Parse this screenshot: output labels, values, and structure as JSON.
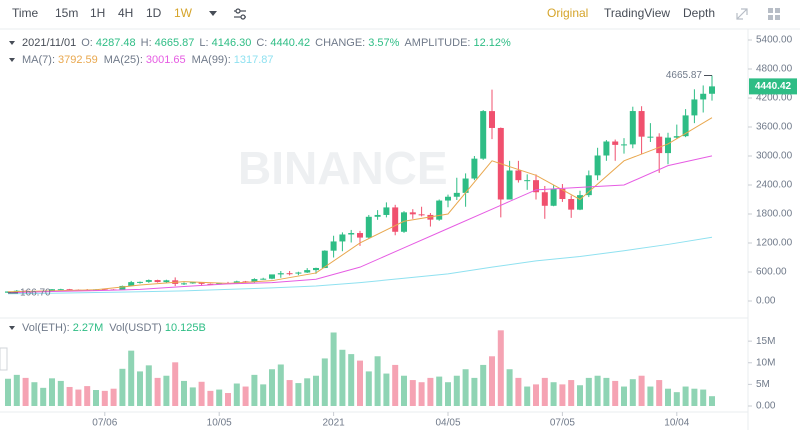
{
  "toolbar": {
    "intervals": [
      "Time",
      "15m",
      "1H",
      "4H",
      "1D",
      "1W"
    ],
    "views": [
      "Original",
      "TradingView",
      "Depth"
    ]
  },
  "chart_data": {
    "type": "candlestick",
    "watermark": "BINANCE",
    "legend": {
      "date": "2021/11/01",
      "items": [
        {
          "label": "O:",
          "value": "4287.48"
        },
        {
          "label": "H:",
          "value": "4665.87"
        },
        {
          "label": "L:",
          "value": "4146.30"
        },
        {
          "label": "C:",
          "value": "4440.42"
        },
        {
          "label": "CHANGE:",
          "value": "3.57%"
        },
        {
          "label": "AMPLITUDE:",
          "value": "12.12%"
        }
      ]
    },
    "high_label": "4665.87",
    "low_label": "166.70",
    "up_color": "#2ebd85",
    "down_color": "#f0506e",
    "volume_up_color": "#8fd4b4",
    "volume_down_color": "#f5a3b3",
    "categories": [
      null,
      null,
      null,
      null,
      null,
      null,
      null,
      null,
      null,
      null,
      null,
      "07/06",
      null,
      null,
      null,
      null,
      null,
      null,
      null,
      null,
      null,
      null,
      null,
      null,
      "10/05",
      null,
      null,
      null,
      null,
      null,
      null,
      null,
      null,
      null,
      null,
      null,
      null,
      "2021",
      null,
      null,
      null,
      null,
      null,
      null,
      null,
      null,
      null,
      null,
      null,
      null,
      "04/05",
      null,
      null,
      null,
      null,
      null,
      null,
      null,
      null,
      null,
      null,
      null,
      null,
      "07/05",
      null,
      null,
      null,
      null,
      null,
      null,
      null,
      null,
      null,
      null,
      null,
      null,
      "10/04",
      null,
      null,
      null,
      null
    ],
    "open": [
      171,
      197,
      212,
      188,
      200,
      206,
      243,
      244,
      232,
      229,
      225,
      241,
      239,
      232,
      311,
      390,
      395,
      433,
      391,
      428,
      353,
      365,
      385,
      355,
      353,
      370,
      368,
      406,
      396,
      454,
      461,
      550,
      575,
      567,
      589,
      639,
      683,
      1041,
      1232,
      1376,
      1406,
      1312,
      1742,
      1780,
      1936,
      1432,
      1834,
      1793,
      1781,
      1683,
      2078,
      2157,
      2237,
      2534,
      2945,
      3929,
      3580,
      2100,
      2700,
      2500,
      2500,
      2250,
      1970,
      2320,
      2110,
      1890,
      2190,
      2600,
      3010,
      3300,
      3230,
      3240,
      3930,
      3400,
      3400,
      3060,
      3380,
      3410,
      3840,
      4170,
      4287.48
    ],
    "high": [
      198,
      227,
      215,
      210,
      215,
      248,
      253,
      250,
      240,
      248,
      245,
      249,
      245,
      318,
      415,
      403,
      445,
      440,
      440,
      488,
      385,
      390,
      388,
      362,
      375,
      395,
      420,
      415,
      470,
      480,
      510,
      620,
      620,
      605,
      680,
      690,
      1050,
      1350,
      1420,
      1470,
      1450,
      1780,
      1880,
      2040,
      1990,
      1860,
      1900,
      1950,
      1820,
      2100,
      2200,
      2550,
      2640,
      3000,
      3950,
      4372,
      3590,
      2900,
      2900,
      2620,
      2620,
      2380,
      2400,
      2420,
      2180,
      2280,
      2700,
      3170,
      3330,
      3340,
      3370,
      4020,
      4030,
      3680,
      3470,
      3480,
      3650,
      3970,
      4380,
      4460,
      4665.87
    ],
    "low": [
      166.7,
      190,
      178,
      180,
      195,
      199,
      226,
      218,
      223,
      218,
      222,
      232,
      228,
      230,
      305,
      360,
      375,
      380,
      380,
      308,
      330,
      355,
      310,
      335,
      340,
      360,
      365,
      372,
      375,
      440,
      450,
      480,
      530,
      535,
      580,
      560,
      680,
      900,
      1030,
      1210,
      1140,
      1290,
      1680,
      1730,
      1360,
      1410,
      1700,
      1750,
      1540,
      1660,
      1940,
      2090,
      1950,
      2500,
      2920,
      3350,
      1730,
      2100,
      2450,
      2300,
      2100,
      1700,
      1960,
      2050,
      1720,
      1880,
      2150,
      2500,
      2900,
      2900,
      3050,
      3160,
      3040,
      3290,
      2650,
      2830,
      3350,
      3390,
      3680,
      3900,
      4146.3
    ],
    "close": [
      197,
      212,
      188,
      200,
      206,
      243,
      244,
      232,
      229,
      225,
      241,
      239,
      232,
      311,
      390,
      395,
      433,
      391,
      428,
      353,
      365,
      385,
      355,
      353,
      370,
      368,
      406,
      396,
      454,
      461,
      550,
      575,
      567,
      589,
      639,
      683,
      1041,
      1232,
      1376,
      1406,
      1312,
      1742,
      1780,
      1936,
      1432,
      1834,
      1793,
      1781,
      1683,
      2078,
      2157,
      2237,
      2534,
      2945,
      3929,
      3580,
      2100,
      2700,
      2500,
      2500,
      2250,
      1970,
      2320,
      2110,
      1890,
      2190,
      2600,
      3010,
      3300,
      3230,
      3240,
      3930,
      3400,
      3400,
      3060,
      3380,
      3410,
      3840,
      4170,
      4287.48,
      4440.42
    ],
    "volume": [
      6300000,
      7200000,
      6500000,
      5500000,
      4200000,
      6400000,
      5800000,
      4400000,
      3800000,
      4600000,
      3700000,
      3500000,
      4000000,
      8600000,
      12800000,
      8000000,
      9400000,
      6500000,
      7000000,
      10100000,
      5800000,
      4300000,
      5600000,
      3500000,
      3800000,
      3000000,
      5200000,
      4500000,
      7200000,
      5000000,
      8500000,
      9600000,
      6000000,
      5300000,
      6400000,
      7000000,
      11000000,
      17000000,
      13000000,
      12000000,
      10500000,
      8000000,
      11500000,
      7500000,
      9500000,
      7000000,
      6000000,
      5500000,
      6500000,
      6800000,
      5500000,
      7000000,
      8500000,
      6500000,
      9500000,
      11500000,
      17500000,
      8500000,
      6500000,
      4500000,
      5000000,
      6500000,
      5500000,
      5000000,
      6000000,
      4800000,
      6500000,
      7000000,
      6500000,
      5800000,
      4500000,
      6200000,
      7000000,
      4500000,
      6000000,
      4000000,
      3200000,
      4500000,
      4000000,
      3800000,
      2270000
    ],
    "volume_legend": [
      {
        "name": "Vol(ETH):",
        "value": "2.27M"
      },
      {
        "name": "Vol(USDT)",
        "value": "10.125B"
      }
    ],
    "ma": [
      {
        "name": "MA(7):",
        "color": "#e9a84f",
        "index": [
          0,
          5,
          10,
          15,
          20,
          25,
          30,
          35,
          40,
          45,
          50,
          55,
          60,
          65,
          70,
          75,
          80
        ],
        "values": [
          190,
          210,
          232,
          330,
          400,
          365,
          420,
          580,
          1200,
          1650,
          1800,
          2900,
          2600,
          2100,
          2900,
          3250,
          3792.59
        ]
      },
      {
        "name": "MA(25):",
        "color": "#e65ce3",
        "index": [
          0,
          5,
          10,
          15,
          20,
          25,
          30,
          35,
          40,
          45,
          50,
          55,
          60,
          65,
          70,
          75,
          80
        ],
        "values": [
          170,
          195,
          215,
          240,
          300,
          355,
          380,
          450,
          700,
          1100,
          1500,
          1900,
          2300,
          2350,
          2400,
          2800,
          3001.65
        ]
      },
      {
        "name": "MA(99):",
        "color": "#8fe1f0",
        "index": [
          0,
          5,
          10,
          15,
          20,
          25,
          30,
          35,
          40,
          45,
          50,
          55,
          60,
          65,
          70,
          75,
          80
        ],
        "values": [
          150,
          160,
          175,
          190,
          210,
          240,
          270,
          310,
          380,
          470,
          560,
          700,
          830,
          920,
          1040,
          1170,
          1317.87
        ]
      }
    ],
    "ylim": [
      -290,
      5607
    ],
    "yticks": [
      {
        "value": 0,
        "label": "0.00"
      },
      {
        "value": 600,
        "label": "600.00"
      },
      {
        "value": 1200,
        "label": "1200.00"
      },
      {
        "value": 1800,
        "label": "1800.00"
      },
      {
        "value": 2400,
        "label": "2400.00"
      },
      {
        "value": 3000,
        "label": "3000.00"
      },
      {
        "value": 3600,
        "label": "3600.00"
      },
      {
        "value": 4200,
        "label": "4200.00"
      },
      {
        "value": 4800,
        "label": "4800.00"
      },
      {
        "value": 5400,
        "label": "5400.00"
      }
    ],
    "volume_ylim": [
      0,
      18500000
    ],
    "volume_yticks": [
      {
        "value": 0,
        "label": "0.00"
      },
      {
        "value": 5000000,
        "label": "5M"
      },
      {
        "value": 10000000,
        "label": "10M"
      },
      {
        "value": 15000000,
        "label": "15M"
      }
    ]
  }
}
